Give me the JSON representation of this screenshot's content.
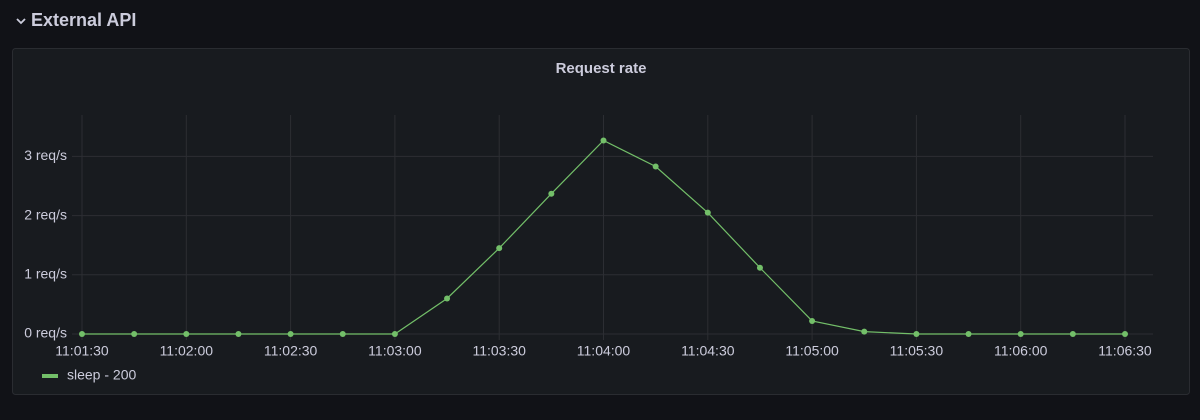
{
  "row_title": "External API",
  "chart_data": {
    "type": "line",
    "title": "Request rate",
    "categories": [
      "11:01:30",
      null,
      "11:02:00",
      null,
      "11:02:30",
      null,
      "11:03:00",
      null,
      "11:03:30",
      null,
      "11:04:00",
      null,
      "11:04:30",
      null,
      "11:05:00",
      null,
      "11:05:30",
      null,
      "11:06:00",
      null,
      "11:06:30"
    ],
    "series": [
      {
        "name": "sleep - 200",
        "color": "#73bf69",
        "values": [
          0,
          0,
          0,
          0,
          0,
          0,
          0,
          0.6,
          1.45,
          2.37,
          3.27,
          2.83,
          2.05,
          1.12,
          0.22,
          0.04,
          0,
          0,
          0,
          0,
          0
        ]
      }
    ],
    "ylim": [
      0,
      3.7
    ],
    "yticks": [
      {
        "value": 0,
        "label": "0 req/s"
      },
      {
        "value": 1,
        "label": "1 req/s"
      },
      {
        "value": 2,
        "label": "2 req/s"
      },
      {
        "value": 3,
        "label": "3 req/s"
      }
    ],
    "grid": true
  }
}
